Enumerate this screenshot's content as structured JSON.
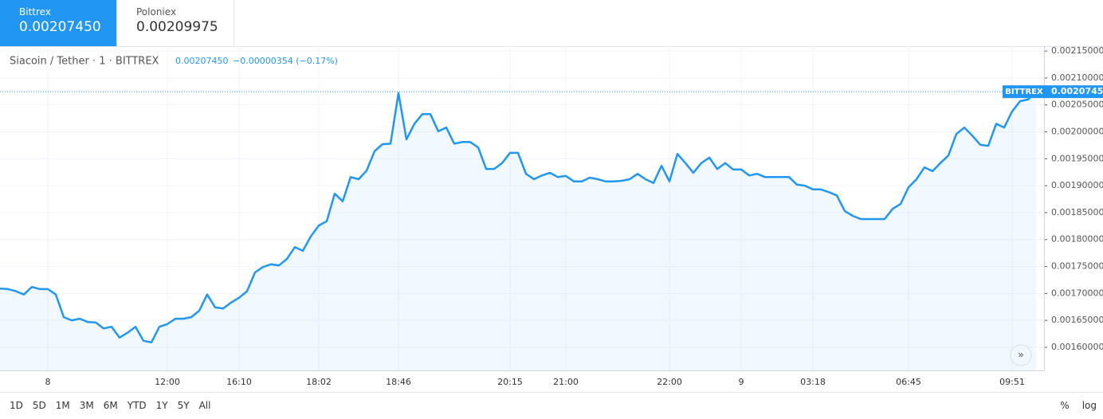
{
  "tabs": [
    {
      "name": "Bittrex",
      "price": "0.00207450"
    },
    {
      "name": "Poloniex",
      "price": "0.00209975"
    }
  ],
  "timeframes": [
    "1D",
    "5D",
    "1M",
    "3M",
    "6M",
    "YTD",
    "1Y",
    "5Y",
    "All"
  ],
  "scale_buttons": [
    "%",
    "log"
  ],
  "chart_data": {
    "type": "area",
    "title": "Siacoin / Tether · 1 · BITTREX",
    "last_value": "0.00207450",
    "change": "−0.00000354 (−0.17%)",
    "price_line": {
      "source": "BITTREX",
      "value": 0.0020745,
      "label": "0.00207450"
    },
    "categories": [
      null,
      null,
      null,
      null,
      null,
      null,
      "8",
      null,
      null,
      null,
      null,
      null,
      null,
      null,
      null,
      null,
      null,
      null,
      null,
      null,
      null,
      "12:00",
      null,
      null,
      null,
      null,
      null,
      null,
      null,
      null,
      "16:10",
      null,
      null,
      null,
      null,
      null,
      null,
      null,
      null,
      null,
      "18:02",
      null,
      null,
      null,
      null,
      null,
      null,
      null,
      null,
      null,
      "18:46",
      null,
      null,
      null,
      null,
      null,
      null,
      null,
      null,
      null,
      null,
      null,
      null,
      null,
      "20:15",
      null,
      null,
      null,
      null,
      null,
      null,
      "21:00",
      null,
      null,
      null,
      null,
      null,
      null,
      null,
      null,
      null,
      null,
      null,
      null,
      "22:00",
      null,
      null,
      null,
      null,
      null,
      null,
      null,
      null,
      "9",
      null,
      null,
      null,
      null,
      null,
      null,
      null,
      null,
      "03:18",
      null,
      null,
      null,
      null,
      null,
      null,
      null,
      null,
      null,
      null,
      null,
      "06:45",
      null,
      null,
      null,
      null,
      null,
      null,
      null,
      null,
      null,
      null,
      null,
      null,
      "09:51",
      null,
      null,
      null
    ],
    "series": [
      {
        "name": "BITTREX",
        "color": "#2196f3",
        "values": [
          0.001709,
          0.001708,
          0.001704,
          0.001698,
          0.001712,
          0.001708,
          0.001708,
          0.001698,
          0.001656,
          0.00165,
          0.001653,
          0.001647,
          0.001646,
          0.001635,
          0.001638,
          0.001618,
          0.001627,
          0.001638,
          0.001612,
          0.001609,
          0.001638,
          0.001643,
          0.001653,
          0.001653,
          0.001656,
          0.001668,
          0.001698,
          0.001674,
          0.001672,
          0.001683,
          0.001692,
          0.001704,
          0.001739,
          0.001749,
          0.001754,
          0.001752,
          0.001764,
          0.001786,
          0.001779,
          0.001806,
          0.001826,
          0.001834,
          0.001885,
          0.001871,
          0.001916,
          0.001912,
          0.001928,
          0.001964,
          0.001977,
          0.001978,
          0.002072,
          0.001986,
          0.002015,
          0.002033,
          0.002033,
          0.002001,
          0.002008,
          0.001978,
          0.001981,
          0.001981,
          0.001971,
          0.001931,
          0.001931,
          0.001942,
          0.001961,
          0.001961,
          0.001922,
          0.001912,
          0.001919,
          0.001924,
          0.001916,
          0.001918,
          0.001908,
          0.001908,
          0.001915,
          0.001912,
          0.001908,
          0.001908,
          0.001909,
          0.001912,
          0.001922,
          0.001912,
          0.001905,
          0.001937,
          0.001908,
          0.001959,
          0.001942,
          0.001924,
          0.001942,
          0.001952,
          0.001931,
          0.001942,
          0.00193,
          0.00193,
          0.001919,
          0.001922,
          0.001916,
          0.001916,
          0.001916,
          0.001916,
          0.001902,
          0.0019,
          0.001893,
          0.001893,
          0.001888,
          0.001882,
          0.001853,
          0.001844,
          0.001838,
          0.001838,
          0.001838,
          0.001838,
          0.001857,
          0.001866,
          0.001897,
          0.001912,
          0.001934,
          0.001927,
          0.001942,
          0.001956,
          0.001996,
          0.002008,
          0.001993,
          0.001976,
          0.001974,
          0.002015,
          0.002008,
          0.002038,
          0.002057,
          0.00206,
          0.0020745
        ]
      }
    ],
    "ylim": [
      0.001557,
      0.002159
    ],
    "yticks": [
      {
        "value": 0.0016,
        "label": "0.00160000"
      },
      {
        "value": 0.00165,
        "label": "0.00165000"
      },
      {
        "value": 0.0017,
        "label": "0.00170000"
      },
      {
        "value": 0.00175,
        "label": "0.00175000"
      },
      {
        "value": 0.0018,
        "label": "0.00180000"
      },
      {
        "value": 0.00185,
        "label": "0.00185000"
      },
      {
        "value": 0.0019,
        "label": "0.00190000"
      },
      {
        "value": 0.00195,
        "label": "0.00195000"
      },
      {
        "value": 0.002,
        "label": "0.00200000"
      },
      {
        "value": 0.00205,
        "label": "0.00205000"
      },
      {
        "value": 0.0021,
        "label": "0.00210000"
      },
      {
        "value": 0.00215,
        "label": "0.00215000"
      }
    ],
    "grid": true
  }
}
